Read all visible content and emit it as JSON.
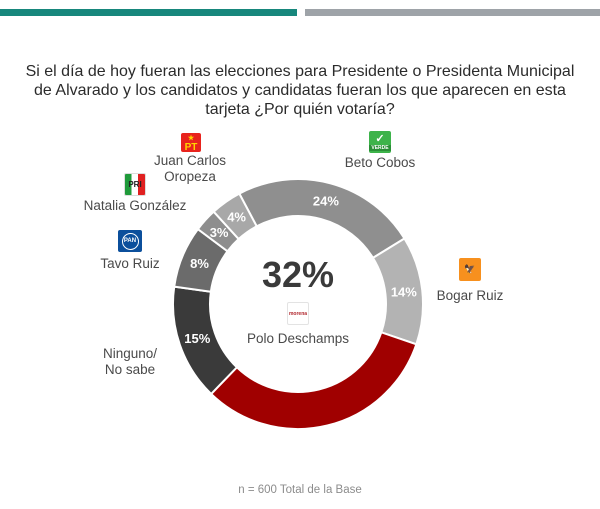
{
  "header": {
    "accent_bar_color": "#17877c",
    "secondary_bar_color": "#9ea3a8"
  },
  "chart_data": {
    "type": "pie",
    "variant": "donut",
    "title": "Si el día de hoy fueran las elecciones para Presidente o Presidenta Municipal de Alvarado y los candidatos y candidatas fueran los que aparecen en esta tarjeta ¿Por quién votaría?",
    "categories": [
      "Beto Cobos",
      "Bogar Ruiz",
      "Polo Deschamps",
      "Ninguno/ No sabe",
      "Tavo Ruiz",
      "Natalia González",
      "Juan Carlos Oropeza"
    ],
    "values": [
      24,
      14,
      32,
      15,
      8,
      3,
      4
    ],
    "value_labels": [
      "24%",
      "14%",
      "",
      "15%",
      "8%",
      "3%",
      "4%"
    ],
    "party_logos": [
      "VERDE",
      "MC",
      "morena",
      "",
      "PAN",
      "PRI",
      "PT"
    ],
    "colors": [
      "#8f8f8f",
      "#b3b3b3",
      "#a00000",
      "#3a3a3a",
      "#6b6b6b",
      "#8e8e8e",
      "#a8a8a8"
    ],
    "center_label": "32%",
    "center_candidate": "Polo Deschamps",
    "start_angle_deg": -28,
    "direction": "clockwise",
    "footnote": "n = 600 Total de la Base"
  },
  "labels": {
    "juan_carlos": "Juan Carlos\nOropeza",
    "natalia": "Natalia González",
    "tavo": "Tavo Ruiz",
    "ninguno": "Ninguno/\nNo sabe",
    "beto": "Beto Cobos",
    "bogar": "Bogar Ruiz",
    "polo": "Polo Deschamps"
  },
  "logos": {
    "pt": "PT",
    "pri": "PRI",
    "pan": "PAN",
    "verde": "VERDE",
    "mc": "MC",
    "morena": "morena"
  }
}
